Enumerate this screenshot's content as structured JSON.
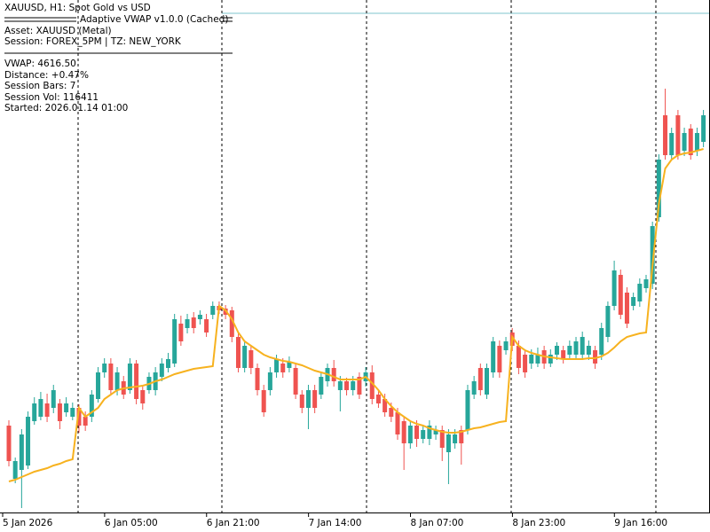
{
  "chart_data": {
    "type": "candlestick",
    "title": "XAUUSD, H1:  Spot Gold vs USD",
    "categories": [
      "5 Jan 2026",
      null,
      null,
      null,
      null,
      null,
      null,
      null,
      null,
      null,
      null,
      null,
      null,
      null,
      null,
      null,
      "6 Jan 05:00",
      null,
      null,
      null,
      null,
      null,
      null,
      null,
      null,
      null,
      null,
      null,
      null,
      null,
      null,
      null,
      "6 Jan 21:00",
      null,
      null,
      null,
      null,
      null,
      null,
      null,
      null,
      null,
      null,
      null,
      null,
      null,
      null,
      null,
      "7 Jan 14:00",
      null,
      null,
      null,
      null,
      null,
      null,
      null,
      null,
      null,
      null,
      null,
      null,
      null,
      null,
      null,
      "8 Jan 07:00",
      null,
      null,
      null,
      null,
      null,
      null,
      null,
      null,
      null,
      null,
      null,
      null,
      null,
      null,
      null,
      "8 Jan 23:00",
      null,
      null,
      null,
      null,
      null,
      null,
      null,
      null,
      null,
      null,
      null,
      null,
      null,
      null,
      null,
      "9 Jan 16:00",
      null,
      null,
      null,
      null,
      null,
      null,
      null,
      null,
      null,
      null,
      null,
      null,
      null
    ],
    "ohlc": {
      "up_color": "#26a69a",
      "down_color": "#ef5350",
      "open": [
        4304,
        4244,
        4254,
        4259,
        4309,
        4314,
        4329,
        4324,
        4329,
        4319,
        4314,
        4324,
        4314,
        4314,
        4334,
        4364,
        4374,
        4344,
        4354,
        4344,
        4374,
        4344,
        4344,
        4344,
        4359,
        4369,
        4374,
        4419,
        4414,
        4426,
        4424,
        4424,
        4429,
        4439,
        4436,
        4434,
        4404,
        4369,
        4389,
        4369,
        4344,
        4344,
        4364,
        4374,
        4369,
        4369,
        4339,
        4324,
        4344,
        4339,
        4354,
        4369,
        4344,
        4354,
        4344,
        4359,
        4354,
        4364,
        4339,
        4334,
        4324,
        4319,
        4309,
        4284,
        4304,
        4289,
        4289,
        4294,
        4299,
        4274,
        4284,
        4299,
        4299,
        4339,
        4369,
        4339,
        4364,
        4394,
        4389,
        4409,
        4394,
        4384,
        4374,
        4374,
        4389,
        4374,
        4384,
        4389,
        4384,
        4384,
        4384,
        4384,
        4389,
        4384,
        4404,
        4439,
        4474,
        4454,
        4439,
        4444,
        4459,
        4464,
        4539,
        4654,
        4609,
        4654,
        4614,
        4639,
        4614,
        4624
      ],
      "high": [
        4310,
        4268,
        4300,
        4320,
        4336,
        4342,
        4340,
        4350,
        4334,
        4336,
        4330,
        4328,
        4320,
        4344,
        4370,
        4380,
        4380,
        4370,
        4360,
        4380,
        4378,
        4348,
        4364,
        4370,
        4380,
        4386,
        4430,
        4428,
        4430,
        4432,
        4434,
        4430,
        4444,
        4444,
        4440,
        4438,
        4410,
        4400,
        4394,
        4374,
        4350,
        4370,
        4384,
        4380,
        4382,
        4374,
        4344,
        4350,
        4350,
        4364,
        4374,
        4378,
        4360,
        4358,
        4360,
        4364,
        4370,
        4372,
        4344,
        4340,
        4330,
        4324,
        4314,
        4310,
        4310,
        4304,
        4310,
        4304,
        4304,
        4300,
        4300,
        4304,
        4350,
        4360,
        4374,
        4374,
        4404,
        4400,
        4404,
        4414,
        4400,
        4390,
        4390,
        4392,
        4394,
        4390,
        4398,
        4394,
        4400,
        4404,
        4410,
        4400,
        4394,
        4420,
        4444,
        4490,
        4480,
        4460,
        4454,
        4470,
        4474,
        4534,
        4610,
        4684,
        4640,
        4660,
        4640,
        4644,
        4640,
        4660
      ],
      "low": [
        4258,
        4239,
        4211,
        4255,
        4305,
        4310,
        4308,
        4318,
        4300,
        4314,
        4310,
        4296,
        4298,
        4308,
        4330,
        4358,
        4340,
        4338,
        4334,
        4340,
        4328,
        4322,
        4340,
        4338,
        4354,
        4364,
        4370,
        4394,
        4408,
        4408,
        4418,
        4404,
        4424,
        4430,
        4424,
        4398,
        4364,
        4364,
        4362,
        4338,
        4314,
        4338,
        4358,
        4358,
        4364,
        4334,
        4318,
        4300,
        4318,
        4334,
        4348,
        4348,
        4320,
        4338,
        4338,
        4334,
        4348,
        4328,
        4324,
        4314,
        4308,
        4288,
        4254,
        4278,
        4280,
        4284,
        4282,
        4288,
        4264,
        4238,
        4278,
        4260,
        4294,
        4334,
        4338,
        4334,
        4358,
        4358,
        4384,
        4388,
        4362,
        4358,
        4368,
        4370,
        4368,
        4370,
        4378,
        4374,
        4378,
        4378,
        4378,
        4378,
        4368,
        4378,
        4398,
        4434,
        4424,
        4414,
        4434,
        4438,
        4454,
        4458,
        4534,
        4604,
        4604,
        4604,
        4608,
        4604,
        4608,
        4618
      ],
      "close": [
        4264,
        4264,
        4294,
        4314,
        4329,
        4334,
        4314,
        4344,
        4309,
        4329,
        4324,
        4304,
        4304,
        4339,
        4364,
        4374,
        4344,
        4364,
        4339,
        4374,
        4334,
        4329,
        4359,
        4364,
        4374,
        4379,
        4424,
        4399,
        4424,
        4414,
        4429,
        4409,
        4439,
        4434,
        4429,
        4404,
        4369,
        4394,
        4369,
        4344,
        4319,
        4364,
        4379,
        4364,
        4376,
        4339,
        4324,
        4344,
        4324,
        4359,
        4369,
        4354,
        4354,
        4344,
        4354,
        4339,
        4364,
        4334,
        4329,
        4319,
        4314,
        4294,
        4284,
        4304,
        4289,
        4299,
        4304,
        4299,
        4279,
        4294,
        4294,
        4284,
        4344,
        4354,
        4344,
        4369,
        4399,
        4364,
        4399,
        4394,
        4369,
        4364,
        4384,
        4384,
        4374,
        4384,
        4394,
        4379,
        4394,
        4399,
        4404,
        4394,
        4374,
        4414,
        4439,
        4479,
        4429,
        4419,
        4449,
        4464,
        4469,
        4529,
        4604,
        4609,
        4634,
        4609,
        4634,
        4609,
        4634,
        4654
      ]
    },
    "vwap": {
      "color": "#f7b21f",
      "values": [
        4241,
        4243,
        4246,
        4249,
        4252,
        4254,
        4256,
        4259,
        4261,
        4264,
        4266,
        4324,
        4314,
        4319,
        4324,
        4334,
        4339,
        4344,
        4346,
        4347,
        4348,
        4349,
        4351,
        4354,
        4356,
        4359,
        4362,
        4364,
        4366,
        4368,
        4369,
        4370,
        4371,
        4439,
        4434,
        4424,
        4409,
        4399,
        4394,
        4389,
        4384,
        4381,
        4379,
        4377,
        4376,
        4374,
        4372,
        4369,
        4366,
        4364,
        4362,
        4359,
        4356,
        4356,
        4356,
        4356,
        4359,
        4352,
        4344,
        4334,
        4326,
        4319,
        4314,
        4309,
        4306,
        4304,
        4301,
        4299,
        4297,
        4296,
        4296,
        4297,
        4299,
        4301,
        4302,
        4304,
        4306,
        4308,
        4309,
        4404,
        4394,
        4389,
        4386,
        4384,
        4382,
        4381,
        4380,
        4379,
        4379,
        4379,
        4379,
        4380,
        4380,
        4382,
        4386,
        4392,
        4399,
        4404,
        4406,
        4408,
        4409,
        4484,
        4554,
        4594,
        4604,
        4609,
        4611,
        4612,
        4614,
        4616
      ]
    },
    "ylim": [
      4206,
      4770
    ]
  },
  "indicator_panel": {
    "title": "Adaptive VWAP v1.0.0 (Cached)",
    "lines": [
      "Asset: XAUUSD (Metal)",
      "Session: FOREX_5PM | TZ: NEW_YORK"
    ],
    "stats": [
      "VWAP: 4616.50",
      "Distance: +0.47%",
      "Session Bars: 7",
      "Session Vol: 116411",
      "Started: 2026.01.14 01:00"
    ]
  }
}
